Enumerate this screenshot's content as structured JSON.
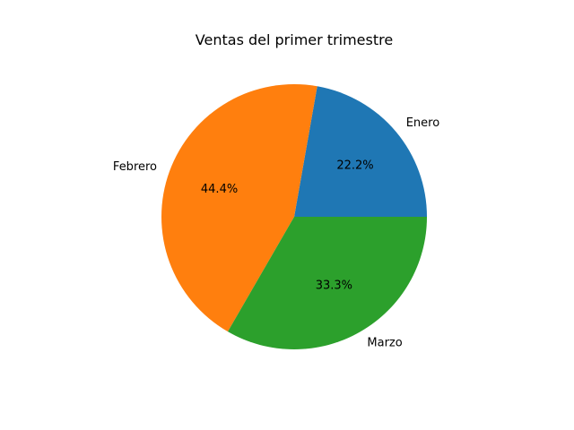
{
  "chart_data": {
    "type": "pie",
    "title": "Ventas del primer trimestre",
    "categories": [
      "Enero",
      "Febrero",
      "Marzo"
    ],
    "values": [
      22.2,
      44.4,
      33.3
    ],
    "percent_labels": [
      "22.2%",
      "44.4%",
      "33.3%"
    ],
    "colors": [
      "#1f77b4",
      "#ff7f0e",
      "#2ca02c"
    ],
    "start_angle": 0,
    "direction": "counterclockwise",
    "legend": false
  }
}
